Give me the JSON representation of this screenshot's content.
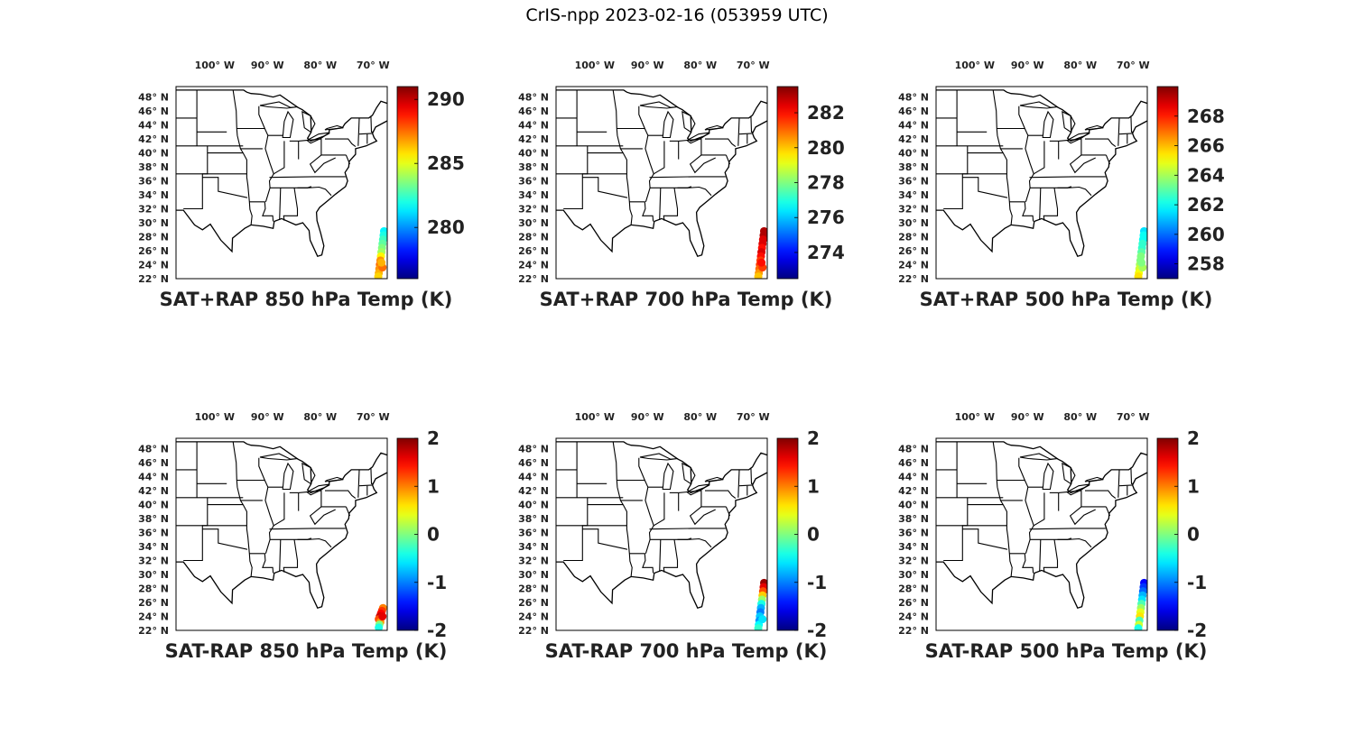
{
  "title": "CrIS-npp 2023-02-16 (053959 UTC)",
  "lon_ticks": [
    "100° W",
    "90° W",
    "80° W",
    "70° W"
  ],
  "lat_ticks": [
    "48° N",
    "46° N",
    "44° N",
    "42° N",
    "40° N",
    "38° N",
    "36° N",
    "34° N",
    "32° N",
    "30° N",
    "28° N",
    "26° N",
    "24° N",
    "22° N"
  ],
  "colormap": "jet",
  "map": {
    "lon_range": [
      -108,
      -68
    ],
    "lat_range": [
      22,
      49.5
    ],
    "colors": {
      "land_outline": "#000000",
      "frame": "#000000"
    }
  },
  "panels": [
    {
      "title": "SAT+RAP 850 hPa Temp (K)",
      "clim": [
        276,
        291
      ],
      "ticks": [
        "290",
        "285",
        "280"
      ],
      "tick_values": [
        290,
        285,
        280
      ],
      "points": [
        [
          -68.6,
          28.8,
          281.5
        ],
        [
          -68.7,
          28.2,
          282.0
        ],
        [
          -68.8,
          27.6,
          282.5
        ],
        [
          -68.9,
          27.0,
          283.0
        ],
        [
          -69.0,
          26.4,
          283.5
        ],
        [
          -69.1,
          25.8,
          284.0
        ],
        [
          -69.2,
          25.2,
          285.5
        ],
        [
          -69.3,
          24.6,
          287.0
        ],
        [
          -69.4,
          24.0,
          287.5
        ],
        [
          -69.5,
          23.4,
          287.0
        ],
        [
          -69.6,
          22.8,
          286.5
        ],
        [
          -69.7,
          22.3,
          286.0
        ],
        [
          -68.9,
          23.6,
          287.5
        ],
        [
          -69.1,
          24.3,
          286.5
        ]
      ]
    },
    {
      "title": "SAT+RAP 700 hPa Temp (K)",
      "clim": [
        272.5,
        283.5
      ],
      "ticks": [
        "282",
        "280",
        "278",
        "276",
        "274"
      ],
      "tick_values": [
        282,
        280,
        278,
        276,
        274
      ],
      "points": [
        [
          -68.6,
          28.8,
          283.0
        ],
        [
          -68.7,
          28.2,
          283.0
        ],
        [
          -68.8,
          27.6,
          282.5
        ],
        [
          -68.9,
          27.0,
          282.5
        ],
        [
          -69.0,
          26.4,
          282.0
        ],
        [
          -69.1,
          25.8,
          282.5
        ],
        [
          -69.2,
          25.2,
          282.0
        ],
        [
          -69.3,
          24.6,
          281.5
        ],
        [
          -69.4,
          24.0,
          281.5
        ],
        [
          -69.5,
          23.4,
          281.0
        ],
        [
          -69.6,
          22.8,
          280.5
        ],
        [
          -69.7,
          22.3,
          280.0
        ],
        [
          -68.9,
          23.6,
          281.5
        ],
        [
          -69.1,
          24.3,
          282.0
        ]
      ]
    },
    {
      "title": "SAT+RAP 500 hPa Temp (K)",
      "clim": [
        257,
        270
      ],
      "ticks": [
        "268",
        "266",
        "264",
        "262",
        "260",
        "258"
      ],
      "tick_values": [
        268,
        266,
        264,
        262,
        260,
        258
      ],
      "points": [
        [
          -68.6,
          28.8,
          261.5
        ],
        [
          -68.7,
          28.2,
          262.0
        ],
        [
          -68.8,
          27.6,
          262.0
        ],
        [
          -68.9,
          27.0,
          262.5
        ],
        [
          -69.0,
          26.4,
          262.5
        ],
        [
          -69.1,
          25.8,
          263.0
        ],
        [
          -69.2,
          25.2,
          263.5
        ],
        [
          -69.3,
          24.6,
          263.5
        ],
        [
          -69.4,
          24.0,
          264.0
        ],
        [
          -69.5,
          23.4,
          264.5
        ],
        [
          -69.6,
          22.8,
          265.0
        ],
        [
          -69.7,
          22.3,
          265.5
        ],
        [
          -68.9,
          23.6,
          264.0
        ],
        [
          -69.1,
          24.3,
          263.5
        ]
      ]
    },
    {
      "title": "SAT-RAP 850 hPa Temp (K)",
      "clim": [
        -2,
        2
      ],
      "ticks": [
        "2",
        "1",
        "0",
        "-1",
        "-2"
      ],
      "tick_values": [
        2,
        1,
        0,
        -1,
        -2
      ],
      "points": [
        [
          -68.8,
          25.2,
          1.0
        ],
        [
          -69.0,
          24.8,
          1.3
        ],
        [
          -69.2,
          24.4,
          1.5
        ],
        [
          -69.4,
          24.0,
          1.7
        ],
        [
          -69.6,
          23.6,
          1.2
        ],
        [
          -69.3,
          23.2,
          0.9
        ],
        [
          -69.5,
          22.8,
          0.0
        ],
        [
          -69.6,
          22.4,
          -0.4
        ],
        [
          -68.9,
          24.0,
          1.6
        ]
      ]
    },
    {
      "title": "SAT-RAP 700 hPa Temp (K)",
      "clim": [
        -2,
        2
      ],
      "ticks": [
        "2",
        "1",
        "0",
        "-1",
        "-2"
      ],
      "tick_values": [
        2,
        1,
        0,
        -1,
        -2
      ],
      "points": [
        [
          -68.6,
          28.8,
          1.9
        ],
        [
          -68.7,
          28.2,
          1.6
        ],
        [
          -68.8,
          27.6,
          1.2
        ],
        [
          -68.9,
          27.0,
          0.7
        ],
        [
          -69.0,
          26.4,
          0.1
        ],
        [
          -69.1,
          25.8,
          -0.4
        ],
        [
          -69.2,
          25.2,
          -0.8
        ],
        [
          -69.3,
          24.6,
          -1.0
        ],
        [
          -69.4,
          24.0,
          -0.7
        ],
        [
          -69.5,
          23.4,
          -0.9
        ],
        [
          -69.6,
          22.8,
          -0.5
        ],
        [
          -69.7,
          22.3,
          -0.3
        ],
        [
          -68.9,
          23.6,
          -0.6
        ]
      ]
    },
    {
      "title": "SAT-RAP 500 hPa Temp (K)",
      "clim": [
        -2,
        2
      ],
      "ticks": [
        "2",
        "1",
        "0",
        "-1",
        "-2"
      ],
      "tick_values": [
        2,
        1,
        0,
        -1,
        -2
      ],
      "points": [
        [
          -68.6,
          28.8,
          -1.5
        ],
        [
          -68.7,
          28.2,
          -1.3
        ],
        [
          -68.8,
          27.6,
          -1.1
        ],
        [
          -68.9,
          27.0,
          -0.8
        ],
        [
          -69.0,
          26.4,
          -0.6
        ],
        [
          -69.1,
          25.8,
          -0.2
        ],
        [
          -69.2,
          25.2,
          0.1
        ],
        [
          -69.3,
          24.6,
          0.4
        ],
        [
          -69.4,
          24.0,
          0.6
        ],
        [
          -69.5,
          23.4,
          -0.2
        ],
        [
          -69.6,
          22.8,
          0.3
        ],
        [
          -69.7,
          22.3,
          -0.4
        ]
      ]
    }
  ]
}
